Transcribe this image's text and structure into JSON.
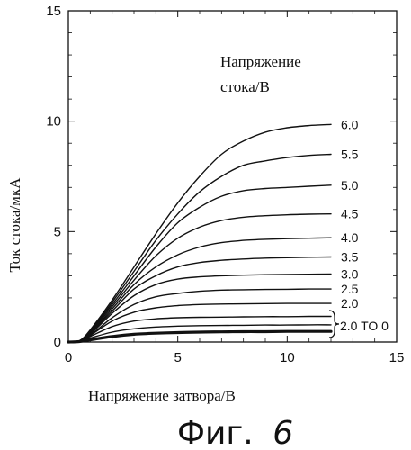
{
  "chart_data": {
    "type": "line",
    "xlabel": "Напряжение затвора/В",
    "ylabel": "Ток стока/мкА",
    "xlim": [
      0,
      15
    ],
    "ylim": [
      0,
      15
    ],
    "xticks": [
      "0",
      "5",
      "10",
      "15"
    ],
    "yticks": [
      "0",
      "5",
      "10",
      "15"
    ],
    "grid": false,
    "legend_title_line1": "Напряжение",
    "legend_title_line2": "стока/В",
    "bracket_label": "2.0 TO 0",
    "series": [
      {
        "name": "6.0",
        "x": [
          0,
          0.5,
          1,
          2,
          3,
          4,
          5,
          6,
          7,
          8,
          9,
          10,
          11,
          12
        ],
        "values": [
          0,
          0.05,
          0.55,
          1.9,
          3.4,
          4.9,
          6.3,
          7.5,
          8.5,
          9.1,
          9.5,
          9.7,
          9.8,
          9.85
        ]
      },
      {
        "name": "5.5",
        "x": [
          0,
          0.5,
          1,
          2,
          3,
          4,
          5,
          6,
          7,
          8,
          9,
          10,
          11,
          12
        ],
        "values": [
          0,
          0.05,
          0.5,
          1.8,
          3.2,
          4.6,
          5.8,
          6.8,
          7.5,
          8.0,
          8.2,
          8.35,
          8.45,
          8.5
        ]
      },
      {
        "name": "5.0",
        "x": [
          0,
          0.5,
          1,
          2,
          3,
          4,
          5,
          6,
          7,
          8,
          9,
          10,
          11,
          12
        ],
        "values": [
          0,
          0.05,
          0.5,
          1.7,
          3.0,
          4.3,
          5.4,
          6.1,
          6.6,
          6.85,
          6.95,
          7.0,
          7.05,
          7.1
        ]
      },
      {
        "name": "4.5",
        "x": [
          0,
          0.5,
          1,
          2,
          3,
          4,
          5,
          6,
          7,
          8,
          9,
          10,
          11,
          12
        ],
        "values": [
          0,
          0.05,
          0.45,
          1.6,
          2.8,
          3.9,
          4.7,
          5.2,
          5.5,
          5.65,
          5.72,
          5.76,
          5.79,
          5.8
        ]
      },
      {
        "name": "4.0",
        "x": [
          0,
          0.5,
          1,
          2,
          3,
          4,
          5,
          6,
          7,
          8,
          9,
          10,
          11,
          12
        ],
        "values": [
          0,
          0.05,
          0.4,
          1.5,
          2.6,
          3.4,
          3.95,
          4.3,
          4.5,
          4.6,
          4.65,
          4.68,
          4.7,
          4.72
        ]
      },
      {
        "name": "3.5",
        "x": [
          0,
          0.5,
          1,
          2,
          3,
          4,
          5,
          6,
          7,
          8,
          9,
          10,
          11,
          12
        ],
        "values": [
          0,
          0.05,
          0.4,
          1.4,
          2.4,
          3.0,
          3.4,
          3.6,
          3.7,
          3.76,
          3.8,
          3.82,
          3.84,
          3.85
        ]
      },
      {
        "name": "3.0",
        "x": [
          0,
          0.5,
          1,
          2,
          3,
          4,
          5,
          6,
          7,
          8,
          9,
          10,
          11,
          12
        ],
        "values": [
          0,
          0.05,
          0.35,
          1.3,
          2.1,
          2.6,
          2.85,
          2.95,
          3.0,
          3.03,
          3.05,
          3.06,
          3.07,
          3.08
        ]
      },
      {
        "name": "2.5",
        "x": [
          0,
          0.5,
          1,
          2,
          3,
          4,
          5,
          6,
          7,
          8,
          9,
          10,
          11,
          12
        ],
        "values": [
          0,
          0.05,
          0.3,
          1.1,
          1.7,
          2.05,
          2.2,
          2.3,
          2.35,
          2.37,
          2.38,
          2.39,
          2.4,
          2.4
        ]
      },
      {
        "name": "2.0",
        "x": [
          0,
          0.5,
          1,
          2,
          3,
          4,
          5,
          6,
          7,
          8,
          9,
          10,
          11,
          12
        ],
        "values": [
          0,
          0.05,
          0.3,
          0.95,
          1.35,
          1.55,
          1.65,
          1.7,
          1.72,
          1.73,
          1.74,
          1.75,
          1.75,
          1.75
        ]
      },
      {
        "name": "",
        "x": [
          0,
          0.5,
          1,
          2,
          3,
          4,
          5,
          6,
          7,
          8,
          9,
          10,
          11,
          12
        ],
        "values": [
          0,
          0.04,
          0.25,
          0.7,
          0.95,
          1.05,
          1.1,
          1.12,
          1.13,
          1.14,
          1.15,
          1.15,
          1.16,
          1.16
        ]
      },
      {
        "name": "",
        "x": [
          0,
          0.5,
          1,
          2,
          3,
          4,
          5,
          6,
          7,
          8,
          9,
          10,
          11,
          12
        ],
        "values": [
          0,
          0.03,
          0.18,
          0.45,
          0.6,
          0.68,
          0.72,
          0.74,
          0.75,
          0.76,
          0.77,
          0.77,
          0.78,
          0.78
        ]
      },
      {
        "name": "",
        "x": [
          0,
          0.5,
          1,
          2,
          3,
          4,
          5,
          6,
          7,
          8,
          9,
          10,
          11,
          12
        ],
        "values": [
          0,
          0.02,
          0.1,
          0.25,
          0.35,
          0.4,
          0.43,
          0.45,
          0.46,
          0.47,
          0.47,
          0.48,
          0.48,
          0.48
        ]
      }
    ]
  },
  "caption": {
    "prefix": "Фиг.",
    "number": "6"
  }
}
